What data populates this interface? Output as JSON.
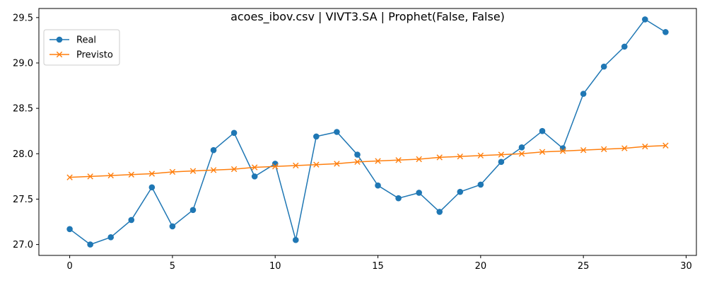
{
  "chart_data": {
    "type": "line",
    "title": "acoes_ibov.csv | VIVT3.SA | Prophet(False, False)",
    "xlabel": "",
    "ylabel": "",
    "xlim": [
      -1.5,
      30.5
    ],
    "ylim": [
      26.88,
      29.6
    ],
    "xticks": [
      0,
      5,
      10,
      15,
      20,
      25,
      30
    ],
    "yticks": [
      27.0,
      27.5,
      28.0,
      28.5,
      29.0,
      29.5
    ],
    "grid": false,
    "legend_position": "upper-left",
    "x": [
      0,
      1,
      2,
      3,
      4,
      5,
      6,
      7,
      8,
      9,
      10,
      11,
      12,
      13,
      14,
      15,
      16,
      17,
      18,
      19,
      20,
      21,
      22,
      23,
      24,
      25,
      26,
      27,
      28,
      29
    ],
    "series": [
      {
        "name": "Real",
        "color": "#1f77b4",
        "marker": "circle",
        "values": [
          27.17,
          27.0,
          27.08,
          27.27,
          27.63,
          27.2,
          27.38,
          28.04,
          28.23,
          27.75,
          27.89,
          27.05,
          28.19,
          28.24,
          27.99,
          27.65,
          27.51,
          27.57,
          27.36,
          27.58,
          27.66,
          27.91,
          28.07,
          28.25,
          28.06,
          28.66,
          28.96,
          29.18,
          29.48,
          29.34
        ]
      },
      {
        "name": "Previsto",
        "color": "#ff7f0e",
        "marker": "x",
        "values": [
          27.74,
          27.75,
          27.76,
          27.77,
          27.78,
          27.8,
          27.81,
          27.82,
          27.83,
          27.85,
          27.86,
          27.87,
          27.88,
          27.89,
          27.91,
          27.92,
          27.93,
          27.94,
          27.96,
          27.97,
          27.98,
          27.99,
          28.0,
          28.02,
          28.03,
          28.04,
          28.05,
          28.06,
          28.08,
          28.09
        ]
      }
    ]
  }
}
